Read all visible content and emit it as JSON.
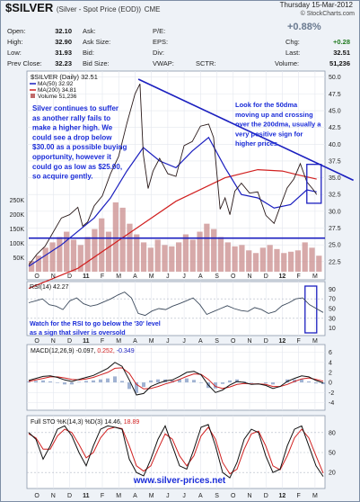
{
  "header": {
    "symbol": "$SILVER",
    "symbol_desc": "(Silver - Spot Price (EOD))",
    "exchange": "CME",
    "date": "Thursday 15-Mar-2012",
    "credit": "© StockCharts.com",
    "pct_change": "+0.88%",
    "quote_rows": [
      {
        "label": "Open:",
        "value": "32.10",
        "label2": "Ask:",
        "value2": "",
        "label3": "P/E:",
        "value3": "",
        "label4": "Chg:",
        "value4": "+0.28"
      },
      {
        "label": "High:",
        "value": "32.90",
        "label2": "Ask Size:",
        "value2": "",
        "label3": "EPS:",
        "value3": "",
        "label4": "Chg:",
        "value4": "+0.28"
      },
      {
        "label": "Low:",
        "value": "31.93",
        "label2": "Bid:",
        "value2": "",
        "label3": "Div:",
        "value3": "",
        "label4": "Last:",
        "value4": "32.51"
      },
      {
        "label": "Prev Close:",
        "value": "32.23",
        "label2": "Bid Size:",
        "value2": "",
        "label3": "VWAP:",
        "value3": "",
        "label3b": "SCTR:",
        "label4": "Volume:",
        "value4": "51,236"
      }
    ]
  },
  "main_legend": {
    "line1": "$SILVER (Daily) 32.51",
    "line2": "MA(50) 32.92",
    "line3": "MA(200) 34.81",
    "line4": "Volume 51,236"
  },
  "annotations": {
    "left": [
      "Silver continues to suffer",
      "as another rally fails to",
      "make a higher high. We",
      "could see a drop below",
      "$30.00 as a possible buying",
      "opportunity, however it",
      "could go as low as $25.00,",
      "so acquire gently."
    ],
    "right": [
      "Look for the 50dma",
      "moving up and crossing",
      "over the 200dma, usually a",
      "very positive sign for",
      "higher prices."
    ],
    "rsi": [
      "Watch for the RSI to go below the '30' level",
      "as a sign that silver is oversold"
    ]
  },
  "watermark": "www.silver-prices.net",
  "panels": {
    "rsi_label": "RSI(14) 42.27",
    "macd_label": "MACD(12,26,9) -0.097,",
    "macd_val2": "0.252,",
    "macd_val3": "-0.349",
    "sto_label": "Full STO %K(14,3) %D(3) 14.46,",
    "sto_val2": "18.89"
  },
  "chart_data": {
    "type": "line",
    "title": "$SILVER (Daily) 32.51",
    "x_month_labels": [
      "O",
      "N",
      "D",
      "11",
      "F",
      "M",
      "A",
      "M",
      "J",
      "J",
      "A",
      "S",
      "O",
      "N",
      "D",
      "12",
      "F",
      "M"
    ],
    "price_axis": {
      "ticks": [
        "50.0",
        "47.5",
        "45.0",
        "42.5",
        "40.0",
        "37.5",
        "35.0",
        "32.5",
        "30.0",
        "27.5",
        "25.0",
        "22.5"
      ],
      "ylim": [
        21,
        50.5
      ]
    },
    "volume_axis": {
      "ticks": [
        "250K",
        "200K",
        "150K",
        "100K",
        "50K"
      ]
    },
    "rsi_axis": {
      "ticks": [
        "90",
        "70",
        "50",
        "30",
        "10"
      ],
      "ylim": [
        0,
        100
      ]
    },
    "macd_axis": {
      "ticks": [
        "6",
        "4",
        "2",
        "0",
        "-2",
        "-4"
      ],
      "ylim": [
        -5,
        7
      ]
    },
    "sto_axis": {
      "ticks": [
        "80",
        "50",
        "20"
      ],
      "ylim": [
        0,
        100
      ]
    },
    "price_series": [
      {
        "m": 0,
        "v": 22.0
      },
      {
        "m": 0.5,
        "v": 23.6
      },
      {
        "m": 1,
        "v": 24.8
      },
      {
        "m": 1.5,
        "v": 26.9
      },
      {
        "m": 2,
        "v": 29.0
      },
      {
        "m": 2.5,
        "v": 29.5
      },
      {
        "m": 3,
        "v": 30.6
      },
      {
        "m": 3.3,
        "v": 27.8
      },
      {
        "m": 3.6,
        "v": 28.4
      },
      {
        "m": 4,
        "v": 30.8
      },
      {
        "m": 4.5,
        "v": 32.3
      },
      {
        "m": 5,
        "v": 35.6
      },
      {
        "m": 5.5,
        "v": 38.2
      },
      {
        "m": 6,
        "v": 43.1
      },
      {
        "m": 6.5,
        "v": 47.5
      },
      {
        "m": 6.8,
        "v": 49.0
      },
      {
        "m": 7,
        "v": 38.5
      },
      {
        "m": 7.3,
        "v": 33.4
      },
      {
        "m": 7.6,
        "v": 36.0
      },
      {
        "m": 8,
        "v": 37.9
      },
      {
        "m": 8.5,
        "v": 35.6
      },
      {
        "m": 9,
        "v": 35.2
      },
      {
        "m": 9.5,
        "v": 39.8
      },
      {
        "m": 10,
        "v": 40.4
      },
      {
        "m": 10.5,
        "v": 42.7
      },
      {
        "m": 11,
        "v": 43.0
      },
      {
        "m": 11.3,
        "v": 41.0
      },
      {
        "m": 11.7,
        "v": 30.3
      },
      {
        "m": 12,
        "v": 32.0
      },
      {
        "m": 12.3,
        "v": 29.5
      },
      {
        "m": 12.6,
        "v": 33.0
      },
      {
        "m": 13,
        "v": 34.2
      },
      {
        "m": 13.5,
        "v": 32.7
      },
      {
        "m": 14,
        "v": 32.9
      },
      {
        "m": 14.5,
        "v": 29.4
      },
      {
        "m": 15,
        "v": 28.2
      },
      {
        "m": 15.4,
        "v": 30.9
      },
      {
        "m": 15.8,
        "v": 33.5
      },
      {
        "m": 16.2,
        "v": 34.8
      },
      {
        "m": 16.6,
        "v": 37.1
      },
      {
        "m": 17,
        "v": 34.4
      },
      {
        "m": 17.4,
        "v": 33.2
      },
      {
        "m": 17.6,
        "v": 32.5
      }
    ],
    "ma50_series": [
      {
        "m": 0,
        "v": 21.8
      },
      {
        "m": 2,
        "v": 25.0
      },
      {
        "m": 4,
        "v": 29.0
      },
      {
        "m": 5,
        "v": 32.0
      },
      {
        "m": 6,
        "v": 36.0
      },
      {
        "m": 7,
        "v": 39.5
      },
      {
        "m": 8,
        "v": 37.5
      },
      {
        "m": 9,
        "v": 36.5
      },
      {
        "m": 10,
        "v": 39.0
      },
      {
        "m": 11,
        "v": 41.0
      },
      {
        "m": 12,
        "v": 36.5
      },
      {
        "m": 13,
        "v": 32.5
      },
      {
        "m": 14,
        "v": 32.0
      },
      {
        "m": 15,
        "v": 30.5
      },
      {
        "m": 16,
        "v": 31.0
      },
      {
        "m": 17,
        "v": 33.2
      },
      {
        "m": 17.6,
        "v": 32.9
      }
    ],
    "ma200_series": [
      {
        "m": 0,
        "v": 18.5
      },
      {
        "m": 3,
        "v": 21.5
      },
      {
        "m": 6,
        "v": 26.5
      },
      {
        "m": 9,
        "v": 31.5
      },
      {
        "m": 12,
        "v": 35.0
      },
      {
        "m": 14,
        "v": 36.2
      },
      {
        "m": 15.5,
        "v": 36.0
      },
      {
        "m": 16.5,
        "v": 35.4
      },
      {
        "m": 17.6,
        "v": 34.8
      }
    ],
    "resistance_line": [
      {
        "m": 6.7,
        "v": 49.7
      },
      {
        "m": 18.2,
        "v": 35.7
      }
    ],
    "support_line": [
      {
        "m": 0,
        "v": 26.0
      },
      {
        "m": 18.2,
        "v": 26.0
      }
    ],
    "volume_values": [
      40,
      60,
      90,
      110,
      130,
      150,
      120,
      100,
      130,
      160,
      200,
      150,
      260,
      240,
      180,
      140,
      110,
      90,
      120,
      100,
      95,
      110,
      140,
      120,
      150,
      180,
      160,
      130,
      110,
      95,
      100,
      80,
      70,
      90,
      100,
      85,
      70,
      75,
      80,
      110,
      90,
      60
    ],
    "rsi_series": [
      62,
      66,
      70,
      58,
      55,
      48,
      66,
      72,
      60,
      55,
      58,
      64,
      70,
      78,
      84,
      72,
      40,
      36,
      45,
      50,
      48,
      55,
      60,
      66,
      72,
      58,
      38,
      44,
      50,
      56,
      50,
      46,
      44,
      52,
      48,
      40,
      44,
      56,
      62,
      70,
      72,
      58,
      50,
      42
    ],
    "macd_series": [
      0.4,
      0.8,
      1.2,
      1.3,
      1.0,
      0.5,
      0.2,
      0.6,
      1.0,
      1.4,
      2.1,
      2.8,
      4.0,
      3.2,
      0.5,
      -2.5,
      -2.2,
      -0.8,
      -0.2,
      0.3,
      0.5,
      1.2,
      2.0,
      2.2,
      1.5,
      -0.5,
      -2.0,
      -1.5,
      -0.5,
      0.2,
      0.0,
      -0.4,
      -0.3,
      -0.6,
      -1.2,
      -0.8,
      0.2,
      0.8,
      1.3,
      1.1,
      0.4,
      -0.1
    ],
    "macd_signal_series": [
      0.2,
      0.5,
      0.8,
      1.1,
      1.1,
      0.9,
      0.6,
      0.5,
      0.7,
      1.0,
      1.5,
      2.0,
      2.8,
      2.9,
      1.8,
      -0.4,
      -1.3,
      -1.2,
      -0.8,
      -0.3,
      0.1,
      0.6,
      1.2,
      1.7,
      1.6,
      0.6,
      -0.8,
      -1.2,
      -0.9,
      -0.4,
      -0.2,
      -0.3,
      -0.3,
      -0.4,
      -0.8,
      -0.8,
      -0.4,
      0.2,
      0.7,
      0.9,
      0.6,
      0.25
    ],
    "sto_k_series": [
      80,
      70,
      40,
      60,
      85,
      90,
      75,
      50,
      30,
      60,
      85,
      90,
      88,
      85,
      40,
      20,
      15,
      40,
      70,
      90,
      60,
      30,
      25,
      55,
      88,
      92,
      60,
      20,
      12,
      35,
      70,
      85,
      80,
      45,
      20,
      25,
      60,
      85,
      90,
      60,
      30,
      14
    ],
    "sto_d_series": [
      78,
      72,
      55,
      55,
      75,
      85,
      80,
      62,
      42,
      50,
      72,
      85,
      88,
      86,
      60,
      30,
      22,
      30,
      55,
      78,
      70,
      45,
      30,
      45,
      75,
      88,
      70,
      35,
      18,
      25,
      55,
      78,
      82,
      60,
      30,
      24,
      45,
      72,
      85,
      72,
      45,
      19
    ]
  }
}
